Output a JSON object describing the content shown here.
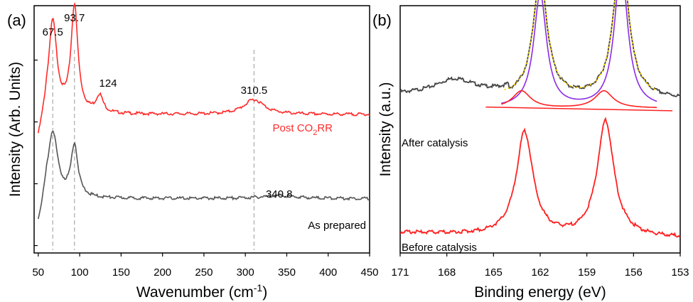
{
  "chart_data": [
    {
      "type": "line",
      "panel_label": "(a)",
      "xlabel": "Wavenumber (cm",
      "xlabel_sup": "-1",
      "xlabel_close": ")",
      "ylabel": "Intensity (Arb. Units)",
      "xlim": [
        45,
        450
      ],
      "xticks": [
        "50",
        "100",
        "150",
        "200",
        "250",
        "300",
        "350",
        "400",
        "450"
      ],
      "xtick_values": [
        50,
        100,
        150,
        200,
        250,
        300,
        350,
        400,
        450
      ],
      "grid": false,
      "peak_labels": [
        {
          "text": "67.5",
          "x": 67.5,
          "series": 0
        },
        {
          "text": "93.7",
          "x": 93.7,
          "series": 0
        },
        {
          "text": "124",
          "x": 124,
          "series": 0
        },
        {
          "text": "310.5",
          "x": 310.5,
          "series": 0
        },
        {
          "text": "340.8",
          "x": 340.8,
          "series": 1
        }
      ],
      "reference_lines_x": [
        67.5,
        93.7,
        310.5
      ],
      "series": [
        {
          "name_main": "Post CO",
          "name_sub": "2",
          "name_tail": "RR",
          "color": "#ff2a2a",
          "baseline": 0.56,
          "peaks": [
            {
              "x": 67.5,
              "height": 0.37,
              "width": 6
            },
            {
              "x": 93.7,
              "height": 0.43,
              "width": 5
            },
            {
              "x": 124,
              "height": 0.07,
              "width": 5
            },
            {
              "x": 310.5,
              "height": 0.06,
              "width": 15
            }
          ]
        },
        {
          "name_main": "As prepared",
          "color": "#555555",
          "baseline": 0.22,
          "peaks": [
            {
              "x": 67.5,
              "height": 0.27,
              "width": 7
            },
            {
              "x": 93.7,
              "height": 0.21,
              "width": 5
            },
            {
              "x": 340.8,
              "height": 0.012,
              "width": 25
            }
          ]
        }
      ]
    },
    {
      "type": "line",
      "panel_label": "(b)",
      "xlabel": "Binding energy (eV)",
      "ylabel": "Intensity (a.u.)",
      "xlim": [
        171,
        153
      ],
      "xticks": [
        "171",
        "168",
        "165",
        "162",
        "159",
        "156",
        "153"
      ],
      "xtick_values": [
        171,
        168,
        165,
        162,
        159,
        156,
        153
      ],
      "x_reversed": true,
      "grid": false,
      "series": [
        {
          "name": "After catalysis",
          "color": "#444444",
          "baseline": 0.62,
          "peaks": [
            {
              "x": 167.5,
              "height": 0.06,
              "width": 1.5
            },
            {
              "x": 162.0,
              "height": 0.49,
              "width": 0.55
            },
            {
              "x": 156.8,
              "height": 0.62,
              "width": 0.55
            }
          ]
        },
        {
          "name": "Before catalysis",
          "color": "#ff2020",
          "baseline": 0.06,
          "peaks": [
            {
              "x": 163.0,
              "height": 0.42,
              "width": 0.65
            },
            {
              "x": 157.8,
              "height": 0.47,
              "width": 0.65
            }
          ]
        }
      ],
      "fit_components": [
        {
          "name": "fit-envelope",
          "color": "#ffd400",
          "style": "dotted"
        },
        {
          "name": "component-1",
          "color": "#8a2be2",
          "peaks": [
            {
              "x": 162.0,
              "height": 0.46,
              "width": 0.5
            },
            {
              "x": 156.8,
              "height": 0.58,
              "width": 0.5
            }
          ]
        },
        {
          "name": "component-2",
          "color": "#ff2020",
          "peaks": [
            {
              "x": 163.2,
              "height": 0.07,
              "width": 0.7
            },
            {
              "x": 157.9,
              "height": 0.07,
              "width": 0.7
            }
          ]
        }
      ]
    }
  ]
}
